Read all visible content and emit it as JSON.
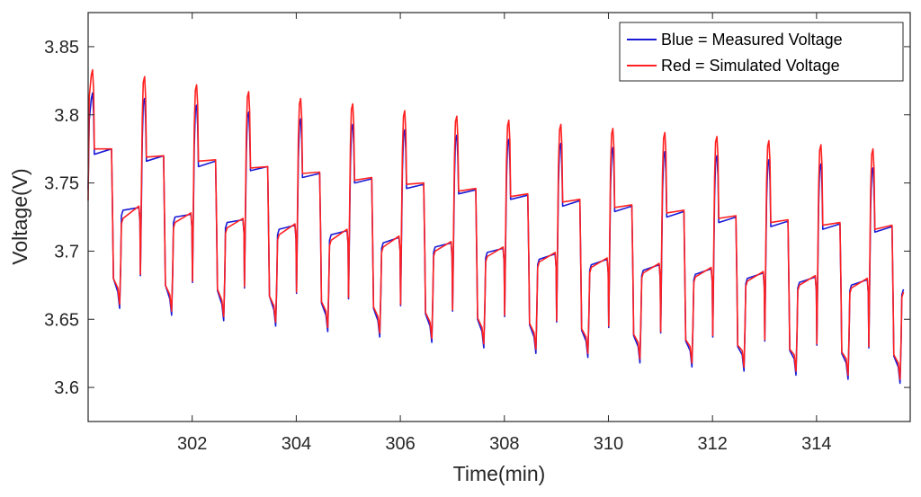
{
  "chart_data": {
    "type": "line",
    "title": "",
    "xlabel": "Time(min)",
    "ylabel": "Voltage(V)",
    "xlim": [
      300.0,
      315.8
    ],
    "ylim": [
      3.575,
      3.875
    ],
    "xticks": [
      302,
      304,
      306,
      308,
      310,
      312,
      314
    ],
    "yticks": [
      3.6,
      3.65,
      3.7,
      3.75,
      3.8,
      3.85
    ],
    "x_tick_labels": [
      "302",
      "304",
      "306",
      "308",
      "310",
      "312",
      "314"
    ],
    "y_tick_labels": [
      "3.6",
      "3.65",
      "3.7",
      "3.75",
      "3.8",
      "3.85"
    ],
    "grid": false,
    "legend_position": "top-right",
    "cycle_period_min": 1.0,
    "cycle_start_min": 300.05,
    "series": [
      {
        "name": "Blue = Measured Voltage",
        "color": "#1a1ad6",
        "peak": [
          3.816,
          3.812,
          3.807,
          3.802,
          3.797,
          3.793,
          3.789,
          3.785,
          3.782,
          3.779,
          3.776,
          3.773,
          3.77,
          3.767,
          3.764,
          3.761
        ],
        "upper_plateau_start": [
          3.771,
          3.766,
          3.762,
          3.759,
          3.754,
          3.75,
          3.746,
          3.742,
          3.738,
          3.733,
          3.729,
          3.725,
          3.721,
          3.718,
          3.716,
          3.714
        ],
        "upper_plateau_end": [
          3.775,
          3.77,
          3.766,
          3.762,
          3.757,
          3.753,
          3.749,
          3.745,
          3.741,
          3.737,
          3.733,
          3.729,
          3.725,
          3.722,
          3.72,
          3.718
        ],
        "trough": [
          3.658,
          3.653,
          3.649,
          3.645,
          3.641,
          3.637,
          3.633,
          3.629,
          3.625,
          3.622,
          3.618,
          3.615,
          3.612,
          3.609,
          3.606,
          3.603
        ],
        "lower_plateau_start": [
          3.73,
          3.725,
          3.721,
          3.716,
          3.712,
          3.706,
          3.703,
          3.699,
          3.694,
          3.69,
          3.686,
          3.683,
          3.68,
          3.677,
          3.675,
          3.672
        ],
        "lower_plateau_end": [
          3.732,
          3.727,
          3.723,
          3.719,
          3.715,
          3.71,
          3.706,
          3.702,
          3.698,
          3.694,
          3.69,
          3.687,
          3.684,
          3.681,
          3.679,
          3.676
        ]
      },
      {
        "name": "Red = Simulated Voltage",
        "color": "#ff2020",
        "peak": [
          3.833,
          3.828,
          3.822,
          3.817,
          3.812,
          3.808,
          3.803,
          3.799,
          3.796,
          3.793,
          3.79,
          3.787,
          3.784,
          3.781,
          3.778,
          3.775
        ],
        "upper_plateau_start": [
          3.775,
          3.769,
          3.766,
          3.761,
          3.757,
          3.752,
          3.749,
          3.744,
          3.74,
          3.736,
          3.732,
          3.728,
          3.724,
          3.721,
          3.719,
          3.716
        ],
        "upper_plateau_end": [
          3.775,
          3.77,
          3.767,
          3.762,
          3.758,
          3.754,
          3.75,
          3.746,
          3.742,
          3.738,
          3.734,
          3.73,
          3.726,
          3.723,
          3.721,
          3.719
        ],
        "trough": [
          3.661,
          3.656,
          3.652,
          3.648,
          3.644,
          3.64,
          3.636,
          3.632,
          3.628,
          3.625,
          3.621,
          3.618,
          3.615,
          3.612,
          3.609,
          3.606
        ],
        "lower_plateau_start": [
          3.724,
          3.721,
          3.717,
          3.712,
          3.708,
          3.703,
          3.7,
          3.696,
          3.692,
          3.688,
          3.684,
          3.681,
          3.678,
          3.675,
          3.673,
          3.67
        ],
        "lower_plateau_end": [
          3.733,
          3.728,
          3.724,
          3.72,
          3.716,
          3.711,
          3.707,
          3.703,
          3.699,
          3.695,
          3.691,
          3.688,
          3.685,
          3.682,
          3.68,
          3.677
        ]
      }
    ]
  }
}
